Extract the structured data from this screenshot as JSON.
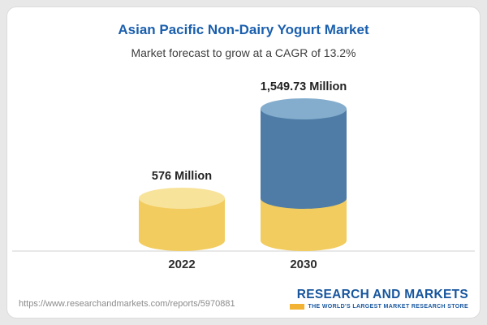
{
  "chart_data": {
    "type": "bar",
    "bar_style": "3d-cylinder-stacked",
    "title": "Asian Pacific Non-Dairy Yogurt Market",
    "subtitle": "Market forecast to grow at a CAGR of 13.2%",
    "cagr_percent": 13.2,
    "categories": [
      "2022",
      "2030"
    ],
    "values": [
      576,
      1549.73
    ],
    "value_labels": [
      "576 Million",
      "1,549.73 Million"
    ],
    "unit": "Million",
    "ylim": [
      0,
      1700
    ],
    "legend": "none",
    "grid": "baseline-only",
    "colors": {
      "base": "#F2CC5F",
      "base_top": "#F8E39B",
      "growth": "#4E7CA6",
      "growth_top": "#84ADCD",
      "baseline": "#d9d9d9",
      "title_blue": "#1A5FAE"
    }
  },
  "footer": {
    "url": "https://www.researchandmarkets.com/reports/5970881",
    "logo_text": "RESEARCH AND MARKETS",
    "logo_tagline": "THE WORLD'S LARGEST MARKET RESEARCH STORE"
  }
}
